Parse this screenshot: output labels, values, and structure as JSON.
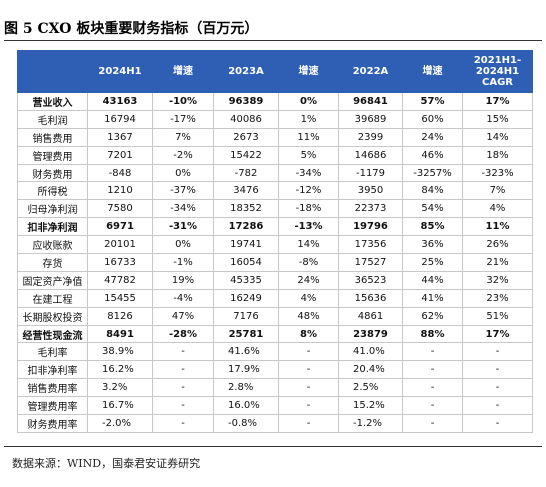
{
  "header": {
    "title": "图 5 CXO 板块重要财务指标（百万元）"
  },
  "table": {
    "columns": [
      null,
      "2024H1",
      "增速",
      "2023A",
      "增速",
      "2022A",
      "增速",
      [
        "2021H1-",
        "2024H1",
        "CAGR"
      ]
    ],
    "bold_rows": [
      0,
      7,
      13
    ],
    "ratio_rows": [
      14,
      15,
      16,
      17,
      18
    ],
    "rows": [
      [
        "营业收入",
        "43163",
        "-10%",
        "96389",
        "0%",
        "96841",
        "57%",
        "17%"
      ],
      [
        "毛利润",
        "16794",
        "-17%",
        "40086",
        "1%",
        "39689",
        "60%",
        "15%"
      ],
      [
        "销售费用",
        "1367",
        "7%",
        "2673",
        "11%",
        "2399",
        "24%",
        "14%"
      ],
      [
        "管理费用",
        "7201",
        "-2%",
        "15422",
        "5%",
        "14686",
        "46%",
        "18%"
      ],
      [
        "财务费用",
        "-848",
        "0%",
        "-782",
        "-34%",
        "-1179",
        "-3257%",
        "-323%"
      ],
      [
        "所得税",
        "1210",
        "-37%",
        "3476",
        "-12%",
        "3950",
        "84%",
        "7%"
      ],
      [
        "归母净利润",
        "7580",
        "-34%",
        "18352",
        "-18%",
        "22373",
        "54%",
        "4%"
      ],
      [
        "扣非净利润",
        "6971",
        "-31%",
        "17286",
        "-13%",
        "19796",
        "85%",
        "11%"
      ],
      [
        "应收账款",
        "20101",
        "0%",
        "19741",
        "14%",
        "17356",
        "36%",
        "26%"
      ],
      [
        "存货",
        "16733",
        "-1%",
        "16054",
        "-8%",
        "17527",
        "25%",
        "21%"
      ],
      [
        "固定资产净值",
        "47782",
        "19%",
        "45335",
        "24%",
        "36523",
        "44%",
        "32%"
      ],
      [
        "在建工程",
        "15455",
        "-4%",
        "16249",
        "4%",
        "15636",
        "41%",
        "23%"
      ],
      [
        "长期股权投资",
        "8126",
        "47%",
        "7176",
        "48%",
        "4861",
        "62%",
        "51%"
      ],
      [
        "经营性现金流",
        "8491",
        "-28%",
        "25781",
        "8%",
        "23879",
        "88%",
        "17%"
      ],
      [
        "毛利率",
        "38.9%",
        "-",
        "41.6%",
        "-",
        "41.0%",
        "-",
        "-"
      ],
      [
        "扣非净利率",
        "16.2%",
        "-",
        "17.9%",
        "-",
        "20.4%",
        "-",
        "-"
      ],
      [
        "销售费用率",
        "3.2%",
        "-",
        "2.8%",
        "-",
        "2.5%",
        "-",
        "-"
      ],
      [
        "管理费用率",
        "16.7%",
        "-",
        "16.0%",
        "-",
        "15.2%",
        "-",
        "-"
      ],
      [
        "财务费用率",
        "-2.0%",
        "-",
        "-0.8%",
        "-",
        "-1.2%",
        "-",
        "-"
      ]
    ]
  },
  "footer": {
    "source": "数据来源：WIND，国泰君安证券研究"
  }
}
